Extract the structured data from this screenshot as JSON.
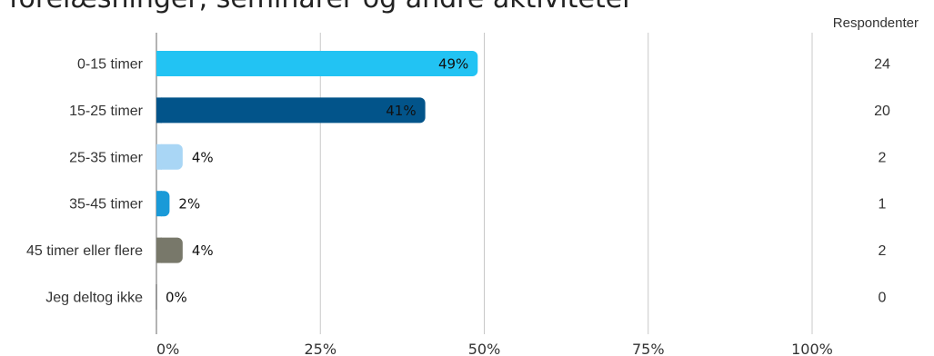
{
  "chart_data": {
    "type": "bar",
    "orientation": "horizontal",
    "title": "forelæsninger, seminarer og andre aktiviteter",
    "categories": [
      "0-15 timer",
      "15-25 timer",
      "25-35 timer",
      "35-45 timer",
      "45 timer eller flere",
      "Jeg deltog ikke"
    ],
    "values": [
      49,
      41,
      4,
      2,
      4,
      0
    ],
    "value_labels": [
      "49%",
      "41%",
      "4%",
      "2%",
      "4%",
      "0%"
    ],
    "respondents_header": "Respondenter",
    "respondents": [
      "24",
      "20",
      "2",
      "1",
      "2",
      "0"
    ],
    "colors": [
      "#22c3f3",
      "#02548a",
      "#a9d6f5",
      "#1a9ad8",
      "#78786a",
      "#999999"
    ],
    "xlim": [
      0,
      100
    ],
    "xticks": [
      0,
      25,
      50,
      75,
      100
    ],
    "xtick_labels": [
      "0%",
      "25%",
      "50%",
      "75%",
      "100%"
    ],
    "grid": true
  }
}
